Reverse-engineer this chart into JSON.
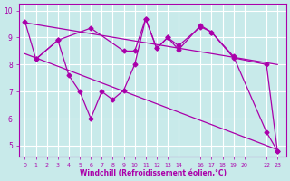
{
  "bg_color": "#c8eaea",
  "line_color": "#aa00aa",
  "grid_color": "#ffffff",
  "xlabel": "Windchill (Refroidissement éolien,°C)",
  "xticks": [
    0,
    1,
    2,
    3,
    4,
    5,
    6,
    7,
    8,
    9,
    10,
    11,
    12,
    13,
    14,
    16,
    17,
    18,
    19,
    20,
    22,
    23
  ],
  "yticks": [
    5,
    6,
    7,
    8,
    9,
    10
  ],
  "ylim": [
    4.6,
    10.25
  ],
  "xlim": [
    -0.5,
    23.8
  ],
  "reg_line1": {
    "x": [
      0,
      23
    ],
    "y": [
      9.55,
      8.0
    ]
  },
  "reg_line2": {
    "x": [
      0,
      23
    ],
    "y": [
      8.4,
      4.85
    ]
  },
  "jagged1_x": [
    0,
    1,
    3,
    6,
    9,
    10,
    11,
    12,
    13,
    14,
    16,
    17,
    19,
    22,
    23
  ],
  "jagged1_y": [
    9.6,
    8.2,
    8.9,
    9.35,
    8.5,
    8.5,
    9.7,
    8.6,
    9.0,
    8.55,
    9.45,
    9.2,
    8.25,
    8.0,
    4.8
  ],
  "jagged2_x": [
    1,
    3,
    4,
    5,
    6,
    7,
    8,
    9,
    10,
    11,
    12,
    13,
    14,
    16,
    17,
    19,
    22,
    23
  ],
  "jagged2_y": [
    8.2,
    8.9,
    7.6,
    7.0,
    6.0,
    7.0,
    6.7,
    7.05,
    8.0,
    9.7,
    8.6,
    9.0,
    8.7,
    9.4,
    9.2,
    8.3,
    5.5,
    4.8
  ]
}
